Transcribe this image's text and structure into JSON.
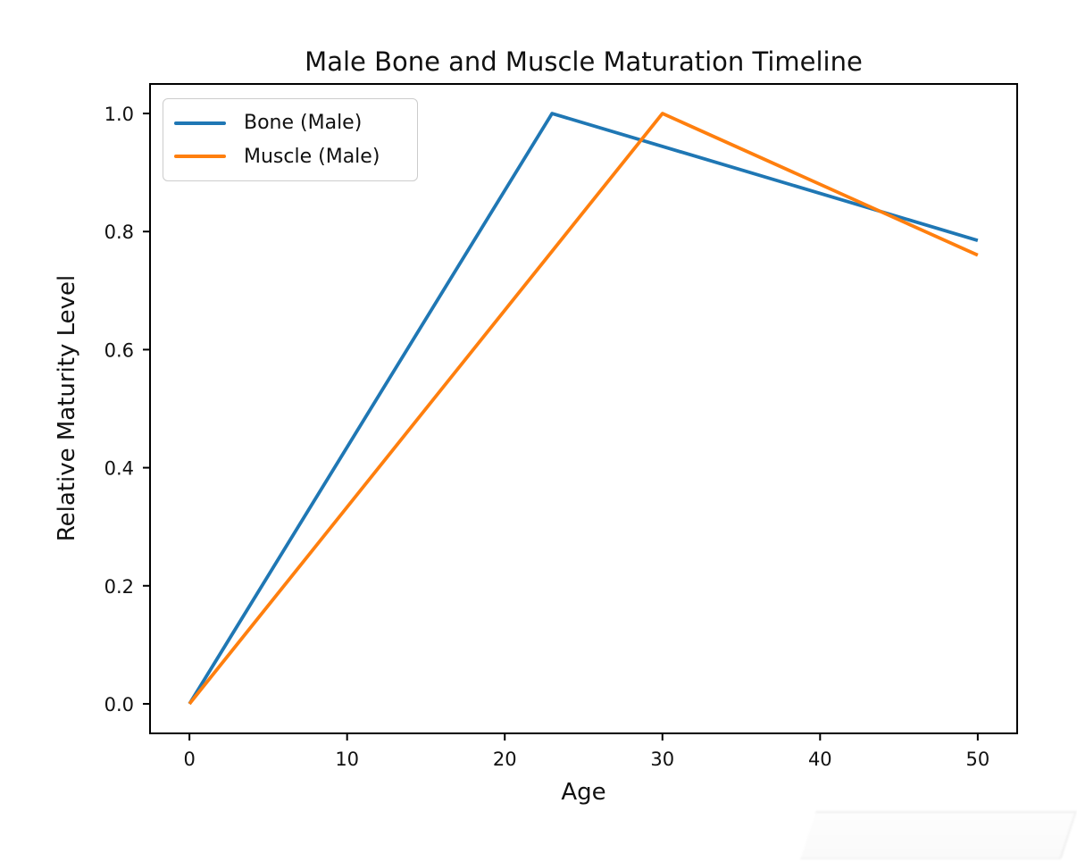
{
  "chart_data": {
    "type": "line",
    "title": "Male Bone and Muscle Maturation Timeline",
    "xlabel": "Age",
    "ylabel": "Relative Maturity Level",
    "xlim": [
      -2.5,
      52.5
    ],
    "ylim": [
      -0.05,
      1.05
    ],
    "grid": false,
    "xticks": {
      "values": [
        0,
        10,
        20,
        30,
        40,
        50
      ],
      "labels": [
        "0",
        "10",
        "20",
        "30",
        "40",
        "50"
      ]
    },
    "yticks": {
      "values": [
        0.0,
        0.2,
        0.4,
        0.6,
        0.8,
        1.0
      ],
      "labels": [
        "0.0",
        "0.2",
        "0.4",
        "0.6",
        "0.8",
        "1.0"
      ]
    },
    "legend": {
      "position": "upper left",
      "entries": [
        "Bone (Male)",
        "Muscle (Male)"
      ]
    },
    "series": [
      {
        "name": "Bone (Male)",
        "color": "#1f77b4",
        "x": [
          0,
          23,
          50
        ],
        "y": [
          0.0,
          1.0,
          0.785
        ]
      },
      {
        "name": "Muscle (Male)",
        "color": "#ff7f0e",
        "x": [
          0,
          30,
          50
        ],
        "y": [
          0.0,
          1.0,
          0.76
        ]
      }
    ]
  },
  "colors": {
    "bone_line": "#1f77b4",
    "muscle_line": "#ff7f0e",
    "axis": "#000000",
    "legend_border": "#cccccc",
    "background": "#ffffff"
  }
}
